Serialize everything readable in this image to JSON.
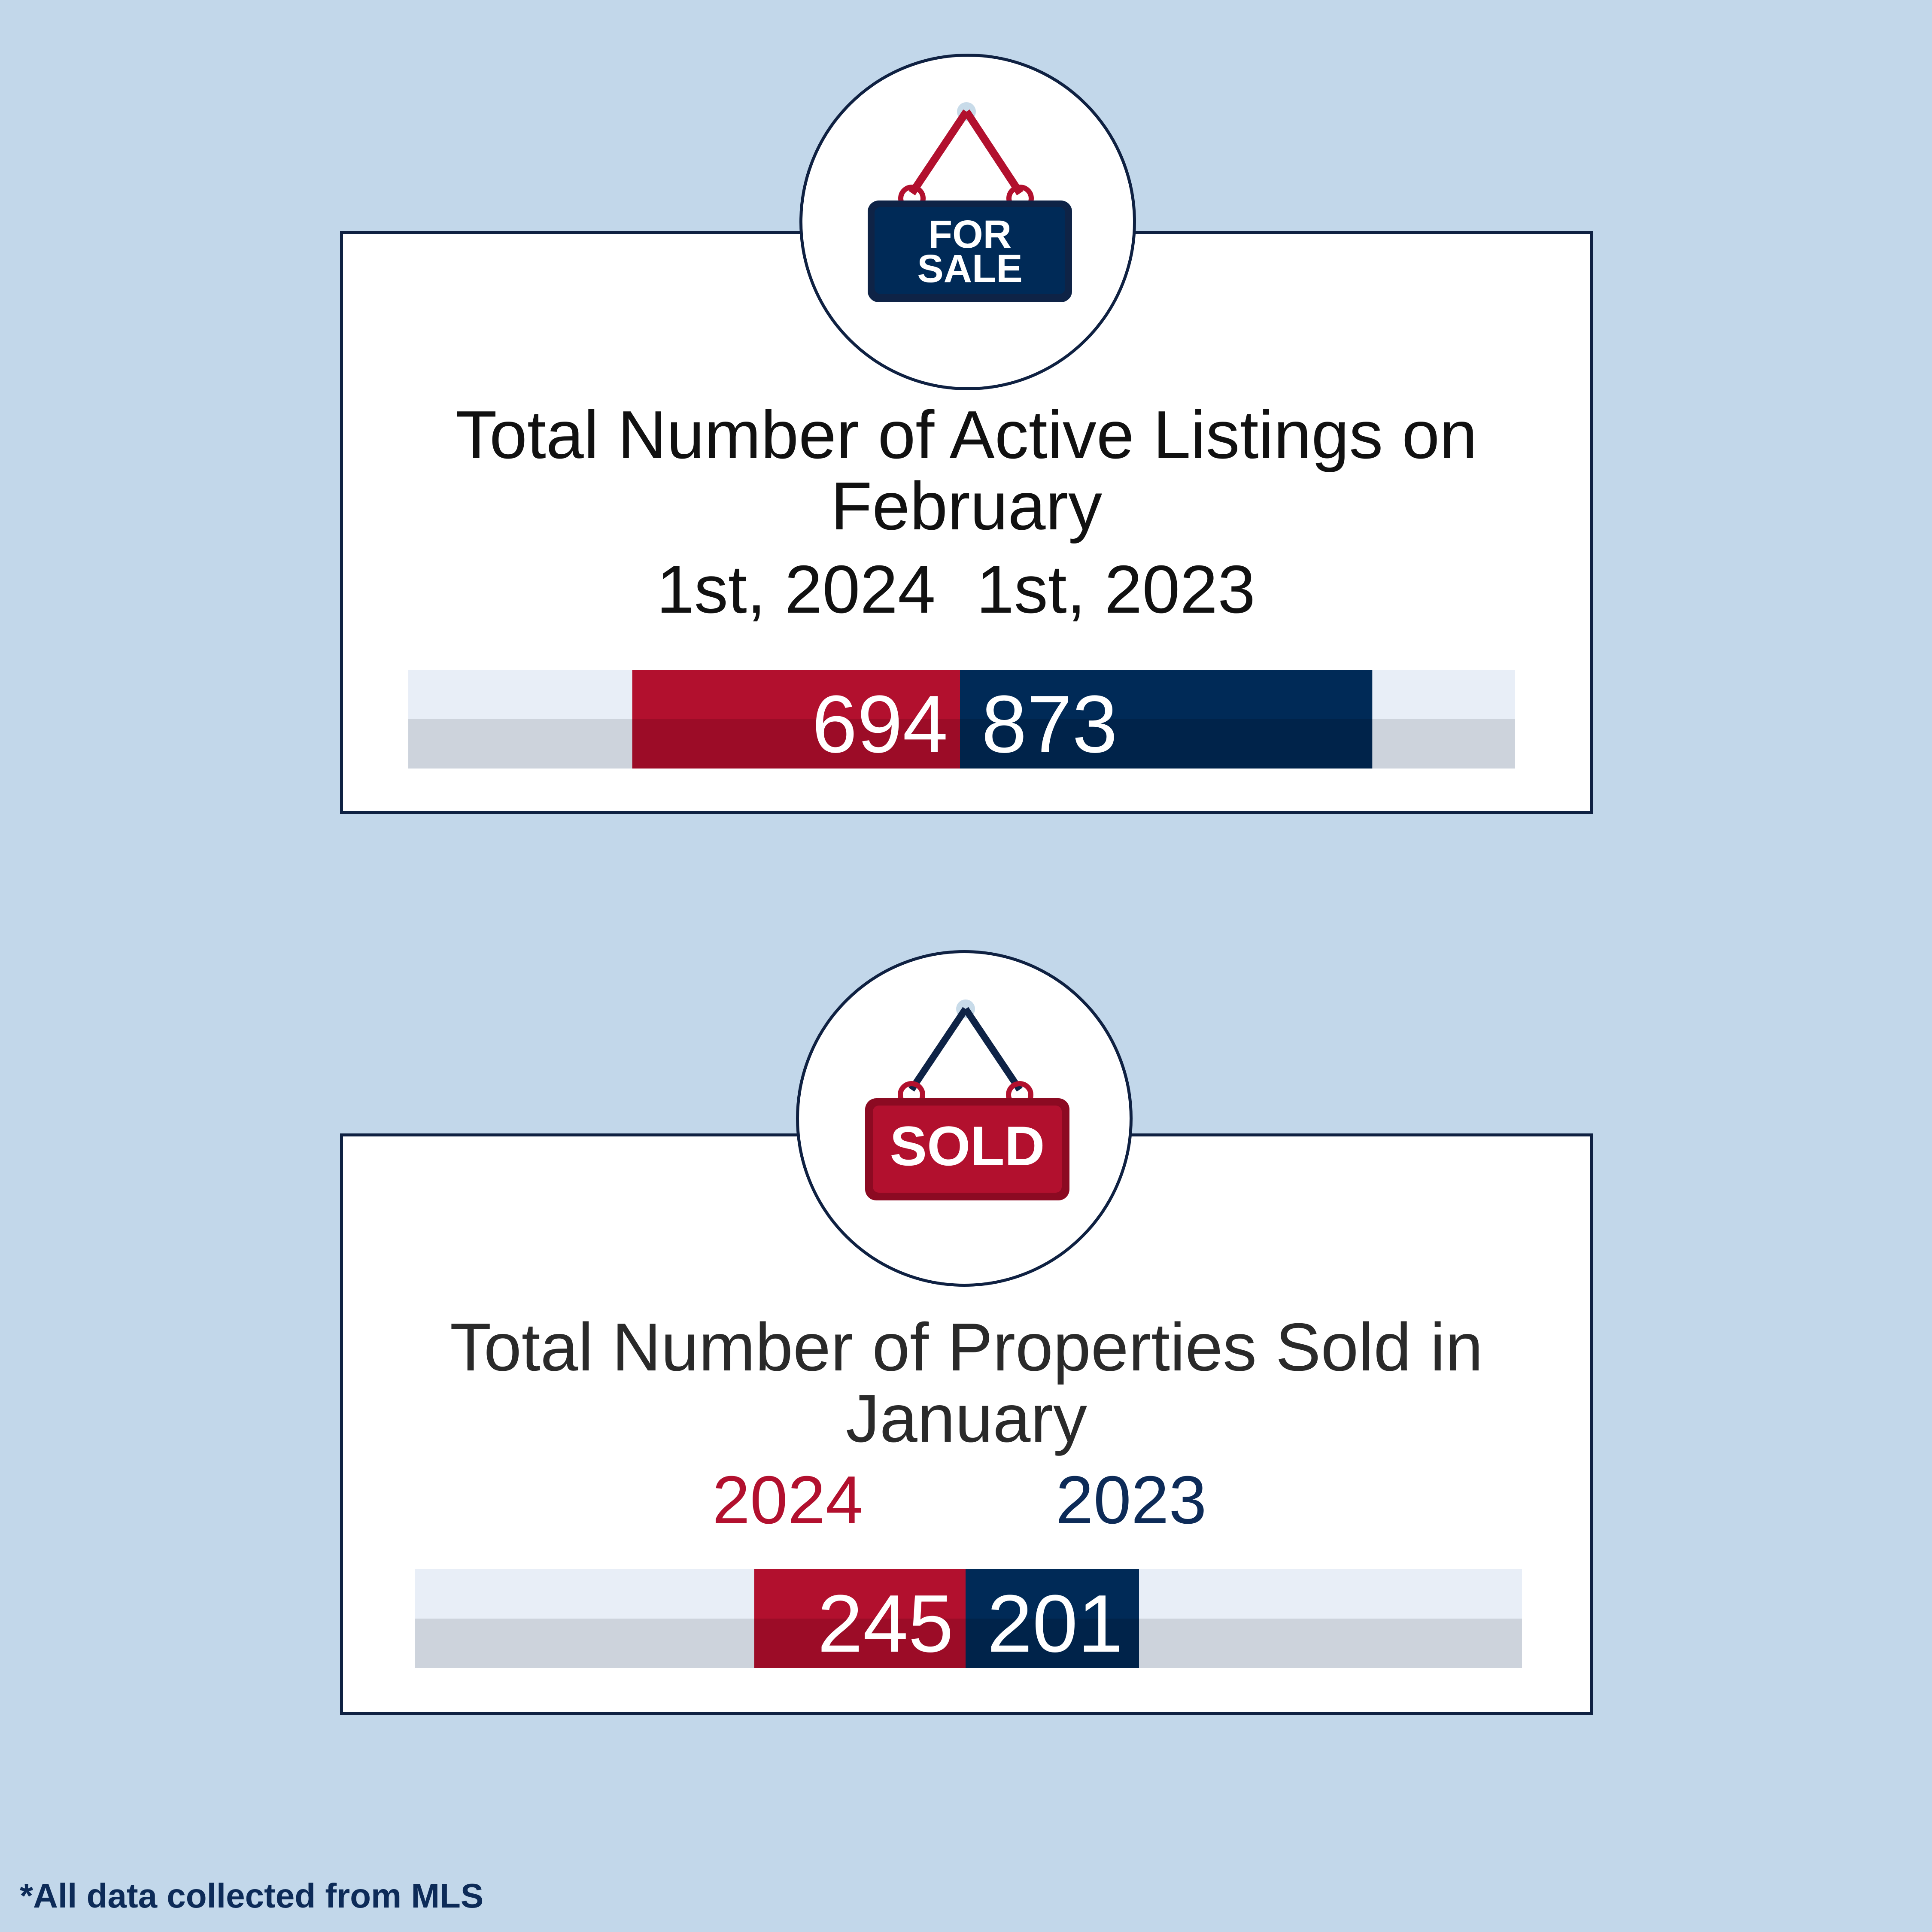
{
  "colors": {
    "red": "#b2102e",
    "red_dark": "#9c0c27",
    "navy": "#002a57",
    "navy_dark": "#00234a",
    "background": "#c2d7ea"
  },
  "icons": {
    "for_sale_sign": "for-sale-sign-icon",
    "sold_sign": "sold-sign-icon"
  },
  "for_sale_sign": {
    "line1": "FOR",
    "line2": "SALE"
  },
  "sold_sign": {
    "text": "SOLD"
  },
  "footnote": "*All data collected from MLS",
  "chart_data": [
    {
      "type": "bar",
      "title": "Total Number of Active Listings on February",
      "categories": [
        "1st, 2024",
        "1st, 2023"
      ],
      "values": [
        694,
        873
      ],
      "colors": [
        "#b2102e",
        "#002a57"
      ],
      "value_labels": [
        "694",
        "873"
      ]
    },
    {
      "type": "bar",
      "title": "Total Number of Properties Sold in January",
      "categories": [
        "2024",
        "2023"
      ],
      "values": [
        245,
        201
      ],
      "colors": [
        "#b2102e",
        "#002a57"
      ],
      "value_labels": [
        "245",
        "201"
      ]
    }
  ]
}
